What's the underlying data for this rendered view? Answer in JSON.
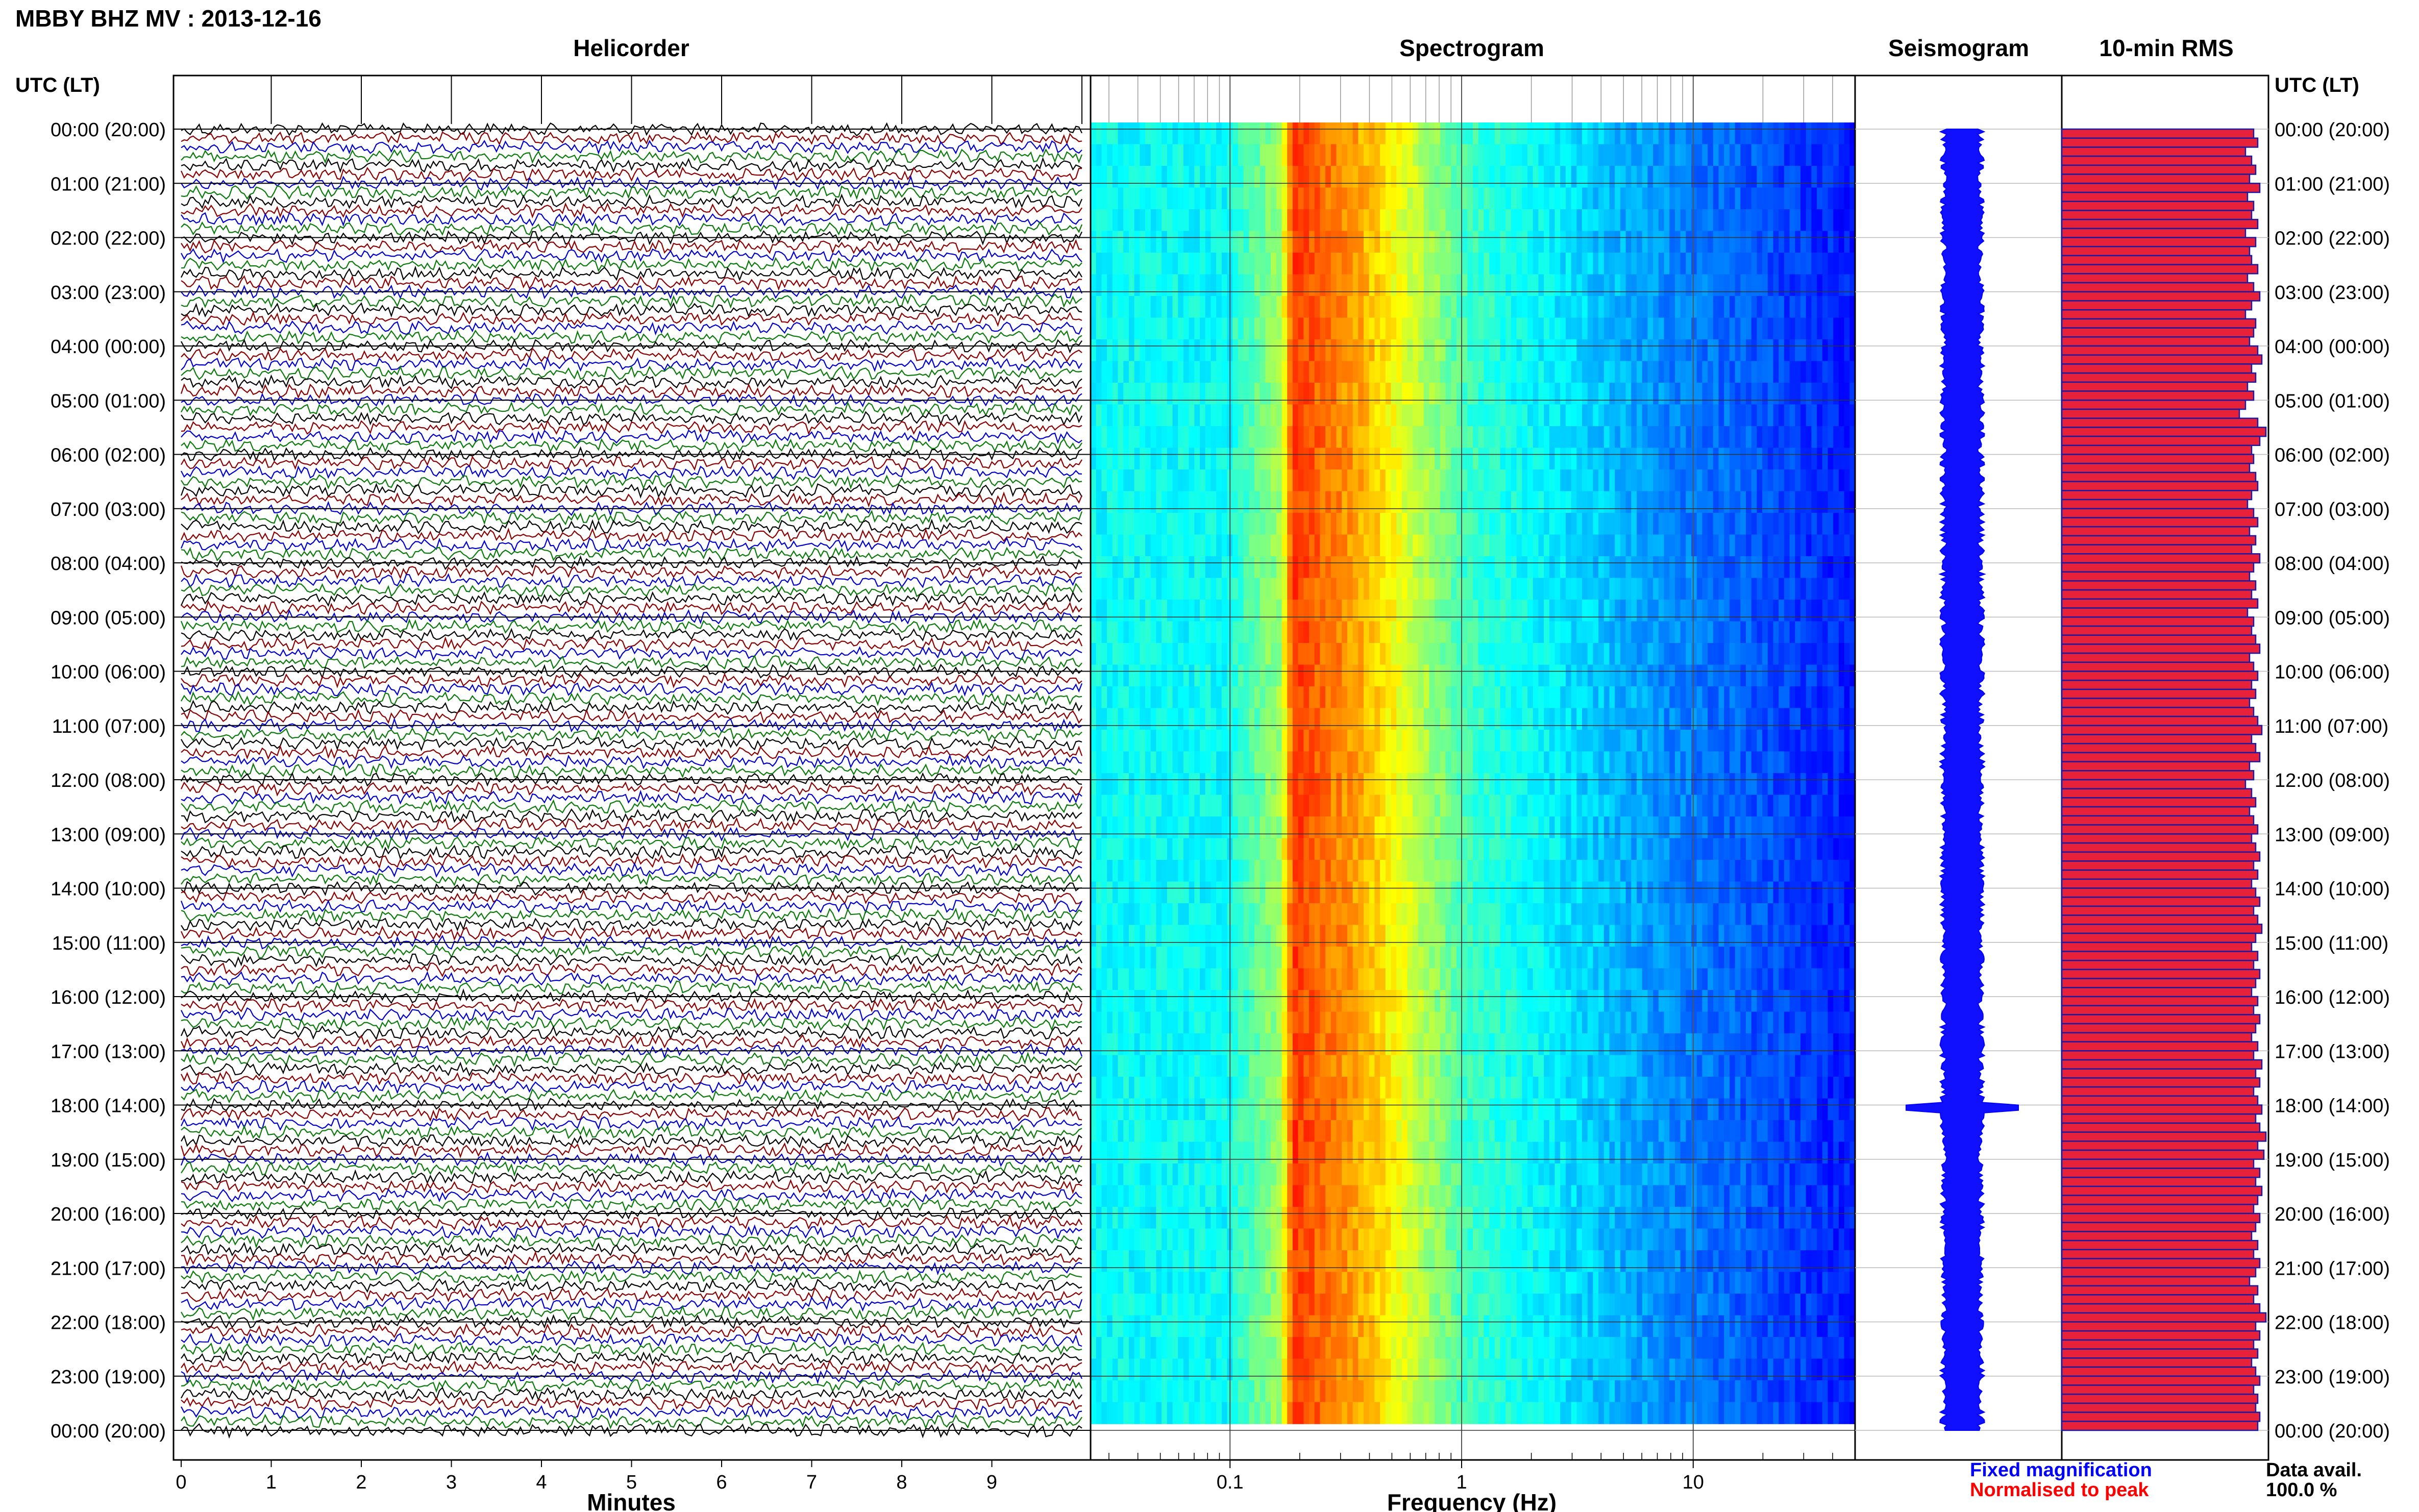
{
  "header": {
    "title": "MBBY BHZ MV : 2013-12-16",
    "utc_label_left": "UTC (LT)",
    "utc_label_right": "UTC (LT)"
  },
  "panels": {
    "helicorder": "Helicorder",
    "spectrogram": "Spectrogram",
    "seismogram": "Seismogram",
    "rms": "10-min RMS"
  },
  "time_labels": [
    "00:00 (20:00)",
    "01:00 (21:00)",
    "02:00 (22:00)",
    "03:00 (23:00)",
    "04:00 (00:00)",
    "05:00 (01:00)",
    "06:00 (02:00)",
    "07:00 (03:00)",
    "08:00 (04:00)",
    "09:00 (05:00)",
    "10:00 (06:00)",
    "11:00 (07:00)",
    "12:00 (08:00)",
    "13:00 (09:00)",
    "14:00 (10:00)",
    "15:00 (11:00)",
    "16:00 (12:00)",
    "17:00 (13:00)",
    "18:00 (14:00)",
    "19:00 (15:00)",
    "20:00 (16:00)",
    "21:00 (17:00)",
    "22:00 (18:00)",
    "23:00 (19:00)",
    "00:00 (20:00)"
  ],
  "axes": {
    "minutes_label": "Minutes",
    "minutes_ticks": [
      "0",
      "1",
      "2",
      "3",
      "4",
      "5",
      "6",
      "7",
      "8",
      "9"
    ],
    "frequency_label": "Frequency (Hz)",
    "frequency_ticks": [
      "0.1",
      "1",
      "10"
    ]
  },
  "legend": {
    "fixed": "Fixed magnification",
    "normalised": "Normalised to peak",
    "data_avail_label": "Data avail.",
    "data_avail_value": "100.0 %"
  },
  "colors": {
    "fixed": "#0000ff",
    "normalised": "#ff0000",
    "rms_fill": "#e8213a",
    "rms_edge": "#1a1aa0",
    "trace_cycle": [
      "#000000",
      "#8b0000",
      "#0000cc",
      "#0a7a0a"
    ]
  },
  "chart_data": [
    {
      "type": "line",
      "title": "Helicorder",
      "xlabel": "Minutes",
      "xlim": [
        0,
        10
      ],
      "rows": 144,
      "minutes_per_row": 10,
      "ylim": [
        "00:00",
        "24:00"
      ],
      "notes": "one seismic trace per 10-minute row, colours cycling black, dark red, blue, green"
    },
    {
      "type": "heatmap",
      "title": "Spectrogram",
      "xlabel": "Frequency (Hz)",
      "x_scale": "log",
      "xlim": [
        0.025,
        50
      ],
      "peak_frequency_band_hz": [
        0.18,
        0.4
      ]
    },
    {
      "type": "line",
      "title": "Seismogram",
      "ylim": [
        "00:00",
        "24:00"
      ]
    },
    {
      "type": "bar",
      "title": "10-min RMS",
      "orientation": "horizontal",
      "bars": 144,
      "relative_values": [
        0.94,
        0.96,
        0.9,
        0.93,
        0.95,
        0.92,
        0.97,
        0.91,
        0.94,
        0.93,
        0.96,
        0.9,
        0.95,
        0.92,
        0.93,
        0.96,
        0.91,
        0.94,
        0.97,
        0.93,
        0.9,
        0.95,
        0.94,
        0.92,
        0.96,
        0.98,
        0.93,
        0.95,
        0.91,
        0.94,
        0.9,
        0.87,
        0.96,
        1.0,
        0.97,
        0.93,
        0.94,
        0.92,
        0.95,
        0.96,
        0.93,
        0.91,
        0.94,
        0.96,
        0.92,
        0.95,
        0.93,
        0.97,
        0.94,
        0.92,
        0.95,
        0.93,
        0.96,
        0.91,
        0.94,
        0.93,
        0.95,
        0.97,
        0.92,
        0.94,
        0.96,
        0.93,
        0.95,
        0.92,
        0.94,
        0.96,
        0.98,
        0.93,
        0.95,
        0.97,
        0.92,
        0.94,
        0.9,
        0.93,
        0.95,
        0.92,
        0.94,
        0.96,
        0.93,
        0.95,
        0.97,
        0.94,
        0.96,
        0.93,
        0.95,
        0.97,
        0.94,
        0.96,
        0.98,
        0.95,
        0.93,
        0.96,
        0.94,
        0.97,
        0.95,
        0.93,
        0.96,
        0.94,
        0.97,
        0.95,
        0.93,
        0.96,
        0.94,
        0.98,
        0.95,
        0.97,
        0.94,
        0.96,
        0.98,
        0.95,
        0.97,
        1.0,
        0.96,
        0.99,
        0.94,
        0.97,
        0.95,
        0.98,
        0.96,
        0.94,
        0.97,
        0.95,
        0.93,
        0.96,
        0.94,
        0.97,
        0.95,
        0.92,
        0.96,
        0.94,
        0.97,
        1.0,
        0.95,
        0.97,
        0.94,
        0.96,
        0.93,
        0.95,
        0.97,
        0.94,
        0.96,
        0.95,
        0.97,
        0.96
      ],
      "data_availability": "100.0 %"
    }
  ]
}
